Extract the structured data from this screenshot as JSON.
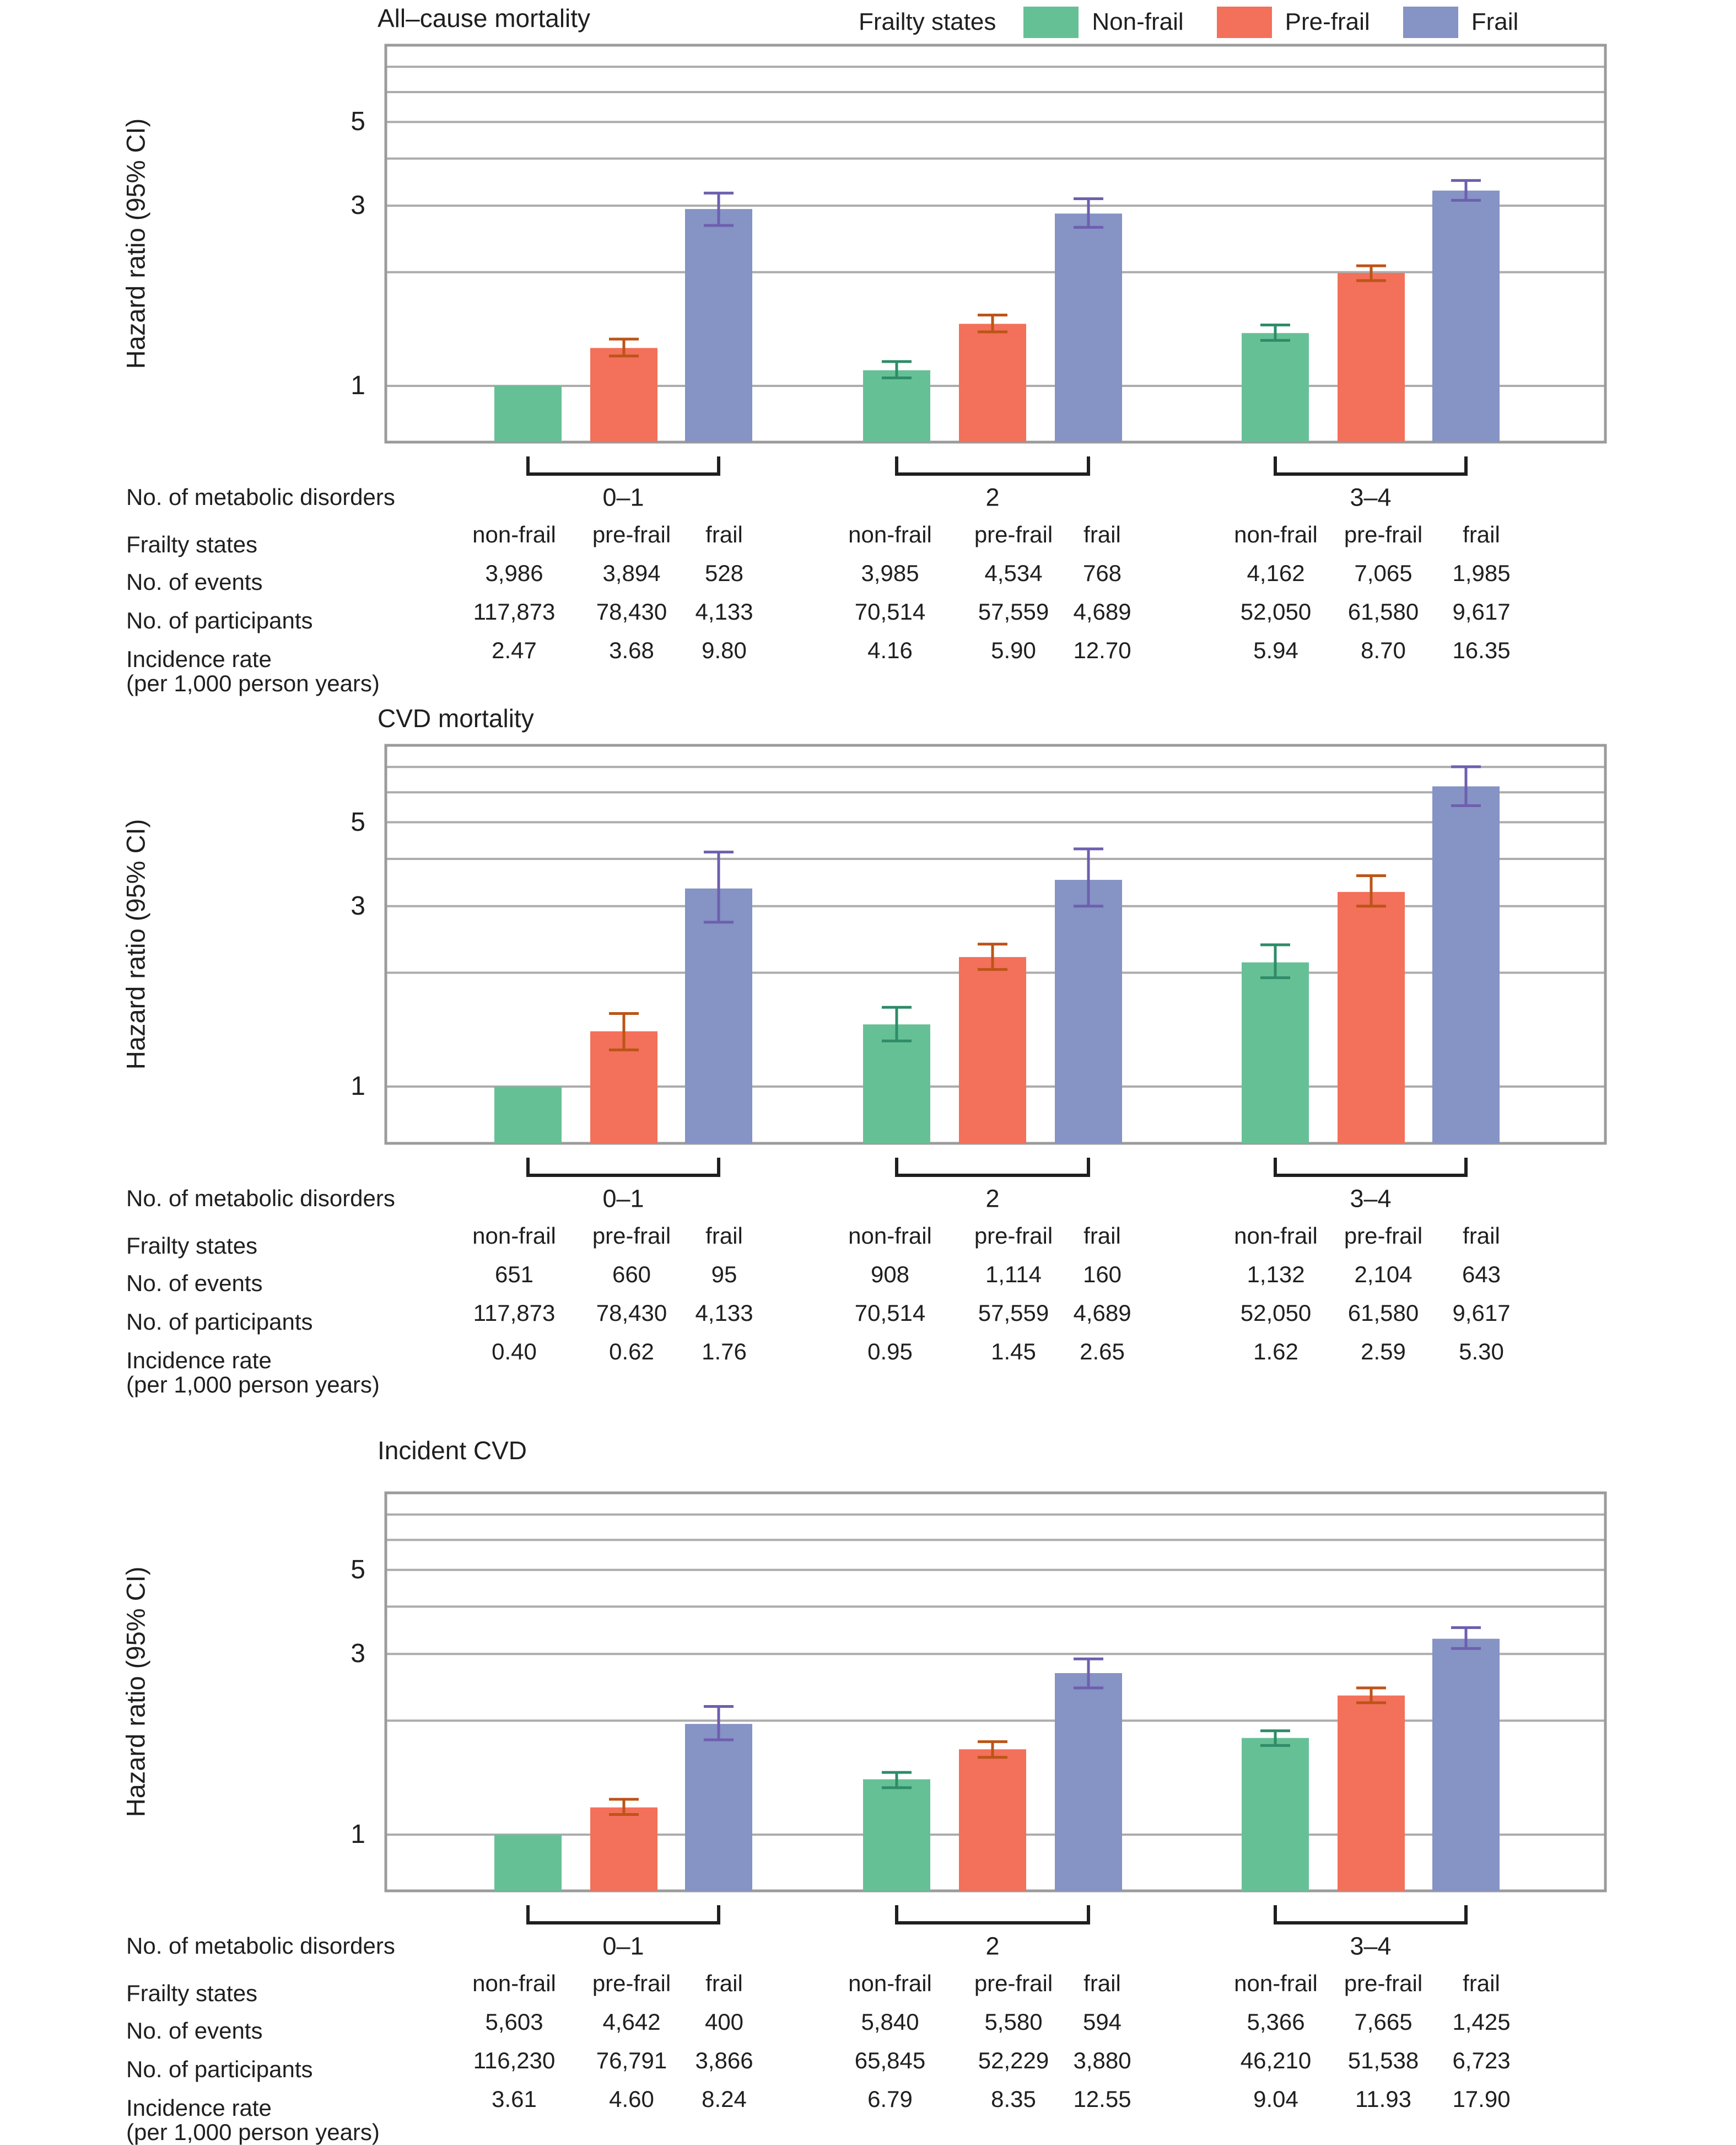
{
  "figure": {
    "background": "#ffffff",
    "text_color": "#1f1f1f"
  },
  "legend": {
    "label": "Frailty states",
    "items": [
      {
        "label": "Non-frail",
        "color": "#66C096"
      },
      {
        "label": "Pre-frail",
        "color": "#F3705A"
      },
      {
        "label": "Frail",
        "color": "#8593C5"
      }
    ]
  },
  "colors": {
    "bar_nonfrail": "#66C096",
    "bar_prefrail": "#F3705A",
    "bar_frail": "#8593C5",
    "err_nonfrail": "#2E8C68",
    "err_prefrail": "#BC5418",
    "err_frail": "#6E5FAE",
    "gridline": "#ACACAC",
    "plot_border": "#9B9B9B",
    "bracket": "#1f1f1f"
  },
  "chart_data": [
    {
      "type": "bar",
      "title": "All–cause mortality",
      "ylabel": "Hazard ratio (95% CI)",
      "yscale": "log",
      "ylim": [
        0.71,
        8
      ],
      "grid": true,
      "legend_position": "top",
      "gridline_values": [
        1,
        2,
        3,
        4,
        5,
        6,
        7
      ],
      "ytick_values": [
        1,
        3,
        5
      ],
      "ytick_labels": [
        "1",
        "3",
        "5"
      ],
      "categories": [
        "0–1",
        "2",
        "3–4"
      ],
      "series": [
        {
          "name": "Non-frail",
          "values": [
            1.0,
            1.1,
            1.38
          ],
          "ci_low": [
            null,
            1.05,
            1.32
          ],
          "ci_high": [
            null,
            1.16,
            1.45
          ]
        },
        {
          "name": "Pre-frail",
          "values": [
            1.26,
            1.46,
            1.99
          ],
          "ci_low": [
            1.2,
            1.39,
            1.9
          ],
          "ci_high": [
            1.33,
            1.54,
            2.08
          ]
        },
        {
          "name": "Frail",
          "values": [
            2.94,
            2.86,
            3.29
          ],
          "ci_low": [
            2.66,
            2.63,
            3.1
          ],
          "ci_high": [
            3.24,
            3.13,
            3.5
          ]
        }
      ],
      "table": {
        "row_labels": [
          "No. of metabolic disorders",
          "Frailty states",
          "No. of events",
          "No. of participants",
          "Incidence rate",
          "(per 1,000 person years)"
        ],
        "col_headers": [
          "non-frail",
          "pre-frail",
          "frail"
        ],
        "groups": [
          {
            "label": "0–1",
            "events": [
              "3,986",
              "3,894",
              "528"
            ],
            "participants": [
              "117,873",
              "78,430",
              "4,133"
            ],
            "incidence": [
              "2.47",
              "3.68",
              "9.80"
            ]
          },
          {
            "label": "2",
            "events": [
              "3,985",
              "4,534",
              "768"
            ],
            "participants": [
              "70,514",
              "57,559",
              "4,689"
            ],
            "incidence": [
              "4.16",
              "5.90",
              "12.70"
            ]
          },
          {
            "label": "3–4",
            "events": [
              "4,162",
              "7,065",
              "1,985"
            ],
            "participants": [
              "52,050",
              "61,580",
              "9,617"
            ],
            "incidence": [
              "5.94",
              "8.70",
              "16.35"
            ]
          }
        ]
      }
    },
    {
      "type": "bar",
      "title": "CVD mortality",
      "ylabel": "Hazard ratio (95% CI)",
      "yscale": "log",
      "ylim": [
        0.71,
        8
      ],
      "grid": true,
      "gridline_values": [
        1,
        2,
        3,
        4,
        5,
        6,
        7
      ],
      "ytick_values": [
        1,
        3,
        5
      ],
      "ytick_labels": [
        "1",
        "3",
        "5"
      ],
      "categories": [
        "0–1",
        "2",
        "3–4"
      ],
      "series": [
        {
          "name": "Non-frail",
          "values": [
            1.0,
            1.46,
            2.13
          ],
          "ci_low": [
            null,
            1.32,
            1.94
          ],
          "ci_high": [
            null,
            1.62,
            2.37
          ]
        },
        {
          "name": "Pre-frail",
          "values": [
            1.4,
            2.2,
            3.27
          ],
          "ci_low": [
            1.25,
            2.04,
            3.0
          ],
          "ci_high": [
            1.56,
            2.38,
            3.61
          ]
        },
        {
          "name": "Frail",
          "values": [
            3.34,
            3.52,
            6.22
          ],
          "ci_low": [
            2.72,
            3.0,
            5.53
          ],
          "ci_high": [
            4.17,
            4.25,
            7.01
          ]
        }
      ],
      "table": {
        "row_labels": [
          "No. of metabolic disorders",
          "Frailty states",
          "No. of events",
          "No. of participants",
          "Incidence rate",
          "(per 1,000 person years)"
        ],
        "col_headers": [
          "non-frail",
          "pre-frail",
          "frail"
        ],
        "groups": [
          {
            "label": "0–1",
            "events": [
              "651",
              "660",
              "95"
            ],
            "participants": [
              "117,873",
              "78,430",
              "4,133"
            ],
            "incidence": [
              "0.40",
              "0.62",
              "1.76"
            ]
          },
          {
            "label": "2",
            "events": [
              "908",
              "1,114",
              "160"
            ],
            "participants": [
              "70,514",
              "57,559",
              "4,689"
            ],
            "incidence": [
              "0.95",
              "1.45",
              "2.65"
            ]
          },
          {
            "label": "3–4",
            "events": [
              "1,132",
              "2,104",
              "643"
            ],
            "participants": [
              "52,050",
              "61,580",
              "9,617"
            ],
            "incidence": [
              "1.62",
              "2.59",
              "5.30"
            ]
          }
        ]
      }
    },
    {
      "type": "bar",
      "title": "Incident CVD",
      "ylabel": "Hazard ratio (95% CI)",
      "yscale": "log",
      "ylim": [
        0.71,
        8
      ],
      "grid": true,
      "gridline_values": [
        1,
        2,
        3,
        4,
        5,
        6,
        7
      ],
      "ytick_values": [
        1,
        3,
        5
      ],
      "ytick_labels": [
        "1",
        "3",
        "5"
      ],
      "categories": [
        "0–1",
        "2",
        "3–4"
      ],
      "series": [
        {
          "name": "Non-frail",
          "values": [
            1.0,
            1.4,
            1.8
          ],
          "ci_low": [
            null,
            1.33,
            1.72
          ],
          "ci_high": [
            null,
            1.46,
            1.88
          ]
        },
        {
          "name": "Pre-frail",
          "values": [
            1.18,
            1.68,
            2.33
          ],
          "ci_low": [
            1.13,
            1.6,
            2.23
          ],
          "ci_high": [
            1.24,
            1.76,
            2.44
          ]
        },
        {
          "name": "Frail",
          "values": [
            1.96,
            2.67,
            3.29
          ],
          "ci_low": [
            1.78,
            2.44,
            3.1
          ],
          "ci_high": [
            2.18,
            2.91,
            3.52
          ]
        }
      ],
      "table": {
        "row_labels": [
          "No. of metabolic disorders",
          "Frailty states",
          "No. of events",
          "No. of participants",
          "Incidence rate",
          "(per 1,000 person years)"
        ],
        "col_headers": [
          "non-frail",
          "pre-frail",
          "frail"
        ],
        "groups": [
          {
            "label": "0–1",
            "events": [
              "5,603",
              "4,642",
              "400"
            ],
            "participants": [
              "116,230",
              "76,791",
              "3,866"
            ],
            "incidence": [
              "3.61",
              "4.60",
              "8.24"
            ]
          },
          {
            "label": "2",
            "events": [
              "5,840",
              "5,580",
              "594"
            ],
            "participants": [
              "65,845",
              "52,229",
              "3,880"
            ],
            "incidence": [
              "6.79",
              "8.35",
              "12.55"
            ]
          },
          {
            "label": "3–4",
            "events": [
              "5,366",
              "7,665",
              "1,425"
            ],
            "participants": [
              "46,210",
              "51,538",
              "6,723"
            ],
            "incidence": [
              "9.04",
              "11.93",
              "17.90"
            ]
          }
        ]
      }
    }
  ]
}
